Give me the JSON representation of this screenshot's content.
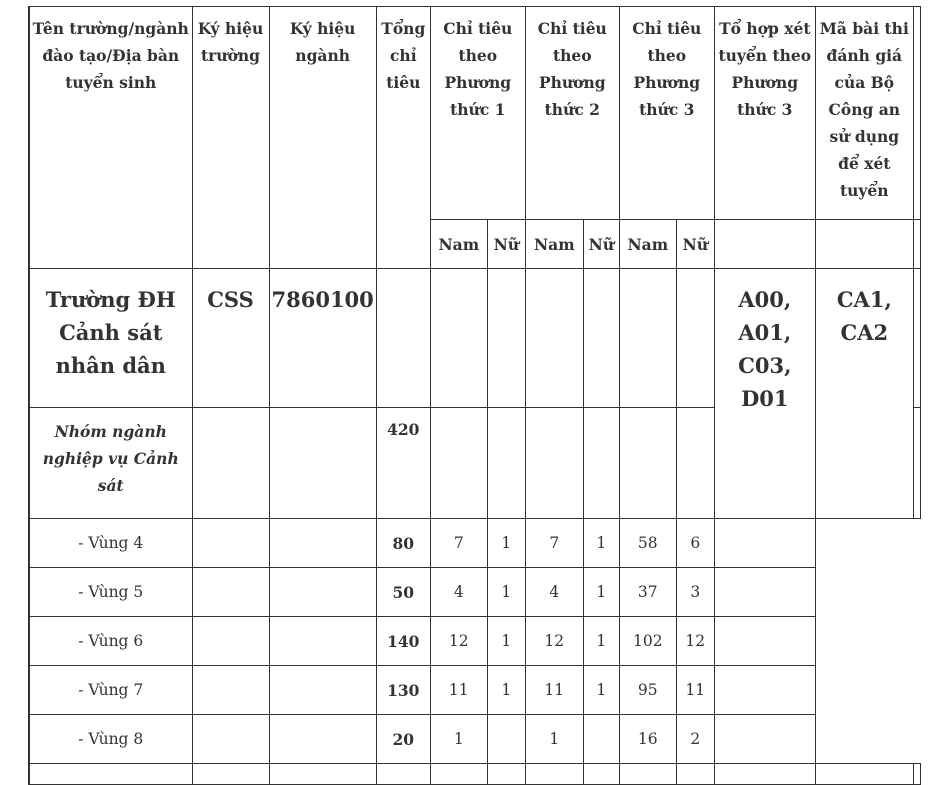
{
  "headers": {
    "name": "Tên trường/ngành đào tạo/Địa bàn tuyển sinh",
    "school_code": "Ký hiệu trường",
    "major_code": "Ký hiệu ngành",
    "total": "Tổng chỉ tiêu",
    "method1": "Chỉ tiêu theo Phương thức 1",
    "method2": "Chỉ tiêu theo Phương thức 2",
    "method3": "Chỉ tiêu theo Phương thức 3",
    "combos": "Tổ hợp xét tuyển theo Phương thức 3",
    "exam_code": "Mã bài thi đánh giá của Bộ Công an sử dụng để xét tuyển",
    "male": "Nam",
    "female": "Nữ"
  },
  "school": {
    "name": "Trường ĐH Cảnh sát nhân dân",
    "school_code": "CSS",
    "major_code": "7860100",
    "combos": "A00, A01, C03, D01",
    "exam_code": "CA1, CA2"
  },
  "group": {
    "name": "Nhóm ngành nghiệp vụ Cảnh sát",
    "total": "420"
  },
  "rows": [
    {
      "name": "- Vùng 4",
      "total": "80",
      "m1_nam": "7",
      "m1_nu": "1",
      "m2_nam": "7",
      "m2_nu": "1",
      "m3_nam": "58",
      "m3_nu": "6"
    },
    {
      "name": "- Vùng 5",
      "total": "50",
      "m1_nam": "4",
      "m1_nu": "1",
      "m2_nam": "4",
      "m2_nu": "1",
      "m3_nam": "37",
      "m3_nu": "3"
    },
    {
      "name": "- Vùng 6",
      "total": "140",
      "m1_nam": "12",
      "m1_nu": "1",
      "m2_nam": "12",
      "m2_nu": "1",
      "m3_nam": "102",
      "m3_nu": "12"
    },
    {
      "name": "- Vùng 7",
      "total": "130",
      "m1_nam": "11",
      "m1_nu": "1",
      "m2_nam": "11",
      "m2_nu": "1",
      "m3_nam": "95",
      "m3_nu": "11"
    },
    {
      "name": "- Vùng 8",
      "total": "20",
      "m1_nam": "1",
      "m1_nu": "",
      "m2_nam": "1",
      "m2_nu": "",
      "m3_nam": "16",
      "m3_nu": "2"
    }
  ]
}
